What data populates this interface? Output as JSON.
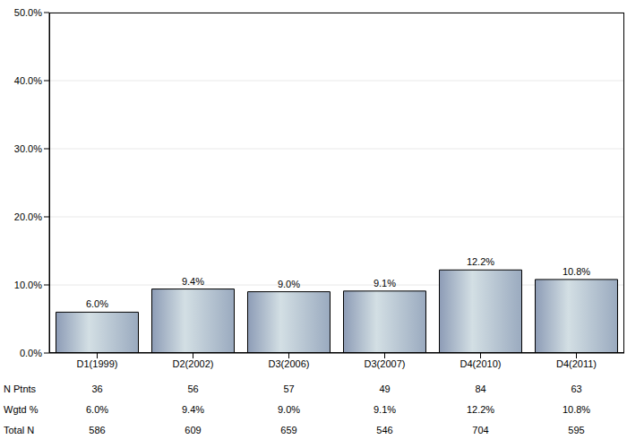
{
  "chart_data": {
    "type": "bar",
    "categories": [
      "D1(1999)",
      "D2(2002)",
      "D3(2006)",
      "D3(2007)",
      "D4(2010)",
      "D4(2011)"
    ],
    "values": [
      6.0,
      9.4,
      9.0,
      9.1,
      12.2,
      10.8
    ],
    "value_labels": [
      "6.0%",
      "9.4%",
      "9.0%",
      "9.1%",
      "12.2%",
      "10.8%"
    ],
    "data_labels": true,
    "color": "#9aaabf",
    "ylim": [
      0,
      50
    ],
    "yticks": [
      {
        "value": 0,
        "label": "0.0%"
      },
      {
        "value": 10,
        "label": "10.0%"
      },
      {
        "value": 20,
        "label": "20.0%"
      },
      {
        "value": 30,
        "label": "30.0%"
      },
      {
        "value": 40,
        "label": "40.0%"
      },
      {
        "value": 50,
        "label": "50.0%"
      }
    ],
    "grid": true
  },
  "table": {
    "rows": [
      {
        "label": "N Ptnts",
        "cells": [
          36,
          56,
          57,
          49,
          84,
          63
        ]
      },
      {
        "label": "Wgtd %",
        "cells": [
          "6.0%",
          "9.4%",
          "9.0%",
          "9.1%",
          "12.2%",
          "10.8%"
        ]
      },
      {
        "label": "Total N",
        "cells": [
          586,
          609,
          659,
          546,
          704,
          595
        ]
      }
    ]
  }
}
